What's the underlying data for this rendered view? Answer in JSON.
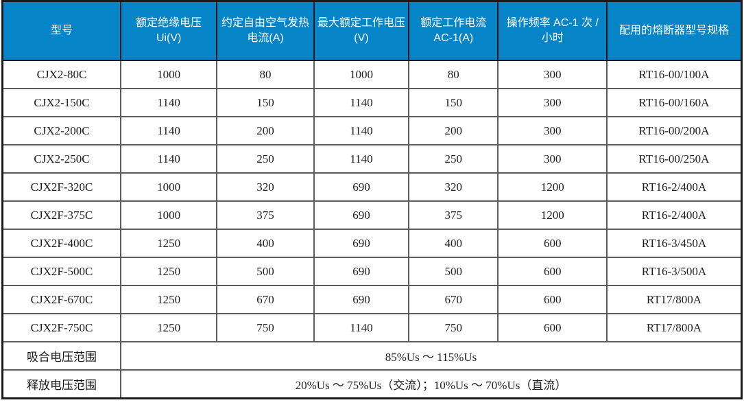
{
  "table": {
    "columns": [
      {
        "label": "型号"
      },
      {
        "label": "额定绝缘电压 Ui(V)"
      },
      {
        "label": "约定自由空气发热电流(A)"
      },
      {
        "label": "最大额定工作电压(V)"
      },
      {
        "label": "额定工作电流 AC-1(A)"
      },
      {
        "label": "操作频率 AC-1 次 / 小时"
      },
      {
        "label": "配用的熔断器型号规格"
      }
    ],
    "rows": [
      {
        "cells": [
          "CJX2-80C",
          "1000",
          "80",
          "1000",
          "80",
          "300",
          "RT16-00/100A"
        ]
      },
      {
        "cells": [
          "CJX2-150C",
          "1140",
          "150",
          "1140",
          "150",
          "300",
          "RT16-00/160A"
        ]
      },
      {
        "cells": [
          "CJX2-200C",
          "1140",
          "200",
          "1140",
          "200",
          "300",
          "RT16-00/200A"
        ]
      },
      {
        "cells": [
          "CJX2-250C",
          "1140",
          "250",
          "1140",
          "250",
          "300",
          "RT16-00/250A"
        ]
      },
      {
        "cells": [
          "CJX2F-320C",
          "1000",
          "320",
          "690",
          "320",
          "1200",
          "RT16-2/400A"
        ]
      },
      {
        "cells": [
          "CJX2F-375C",
          "1000",
          "375",
          "690",
          "375",
          "1200",
          "RT16-2/400A"
        ]
      },
      {
        "cells": [
          "CJX2F-400C",
          "1250",
          "400",
          "690",
          "400",
          "600",
          "RT16-3/450A"
        ]
      },
      {
        "cells": [
          "CJX2F-500C",
          "1250",
          "500",
          "690",
          "500",
          "600",
          "RT16-3/500A"
        ]
      },
      {
        "cells": [
          "CJX2F-670C",
          "1250",
          "670",
          "690",
          "670",
          "600",
          "RT17/800A"
        ]
      },
      {
        "cells": [
          "CJX2F-750C",
          "1250",
          "750",
          "1140",
          "750",
          "600",
          "RT17/800A"
        ]
      }
    ],
    "footer_rows": [
      {
        "label": "吸合电压范围",
        "value": "85%Us ～ 115%Us"
      },
      {
        "label": "释放电压范围",
        "value": "20%Us ～ 75%Us（交流）；10%Us ～ 70%Us（直流）"
      }
    ]
  },
  "colors": {
    "header_bg": "#0584c8",
    "header_text": "#ffffff",
    "inner_border": "#5c5c5c",
    "outer_border": "#181b1f"
  }
}
